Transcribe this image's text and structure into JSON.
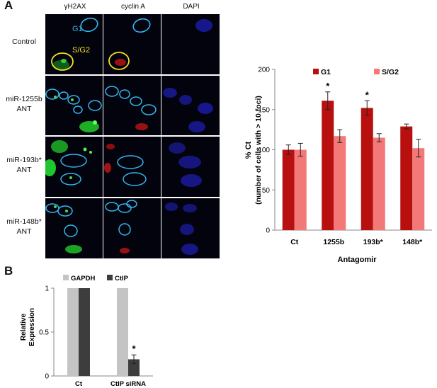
{
  "panel_a": {
    "letter": "A",
    "columns": [
      "γH2AX",
      "cyclin A",
      "DAPI"
    ],
    "rows": [
      {
        "label_lines": [
          "Control"
        ]
      },
      {
        "label_lines": [
          "miR-1255b",
          "ANT"
        ]
      },
      {
        "label_lines": [
          "miR-193b*",
          "ANT"
        ]
      },
      {
        "label_lines": [
          "miR-148b*",
          "ANT"
        ]
      }
    ],
    "overlay_labels": {
      "g1": "G1",
      "sg2": "S/G2"
    },
    "colors": {
      "green": "#22dd33",
      "red": "#ee2222",
      "blue": "#2a2ad0",
      "cyan": "#33b6ee",
      "yellow": "#f0e020"
    }
  },
  "chart_data": [
    {
      "type": "bar",
      "categories": [
        "Ct",
        "1255b",
        "193b*",
        "148b*"
      ],
      "series": [
        {
          "name": "G1",
          "values": [
            100,
            161,
            152,
            129
          ],
          "errors": [
            6,
            11,
            9,
            3
          ],
          "color": "#b80f0f"
        },
        {
          "name": "S/G2",
          "values": [
            100,
            117,
            115,
            102
          ],
          "errors": [
            8,
            8,
            5,
            11
          ],
          "color": "#f37878"
        }
      ],
      "significance": [
        "",
        "*",
        "*",
        ""
      ],
      "xlabel": "Antagomir",
      "ylabel": "% Ct",
      "ylabel2": "(number of cells with > 10 foci)",
      "ylim": [
        0,
        200
      ],
      "yticks": [
        0,
        50,
        100,
        150,
        200
      ],
      "legend": "top"
    },
    {
      "type": "bar",
      "letter": "B",
      "categories": [
        "Ct",
        "CtIP siRNA"
      ],
      "series": [
        {
          "name": "GAPDH",
          "values": [
            1,
            1
          ],
          "errors": [
            0,
            0
          ],
          "color": "#c4c4c4"
        },
        {
          "name": "CtIP",
          "values": [
            1,
            0.19
          ],
          "errors": [
            0,
            0.05
          ],
          "color": "#3d3d3d"
        }
      ],
      "significance": [
        "",
        "*"
      ],
      "ylabel": "Relative",
      "ylabel2": "Expression",
      "ylim": [
        0,
        1
      ],
      "yticks": [
        0,
        0.5,
        1
      ],
      "legend": "top"
    }
  ]
}
